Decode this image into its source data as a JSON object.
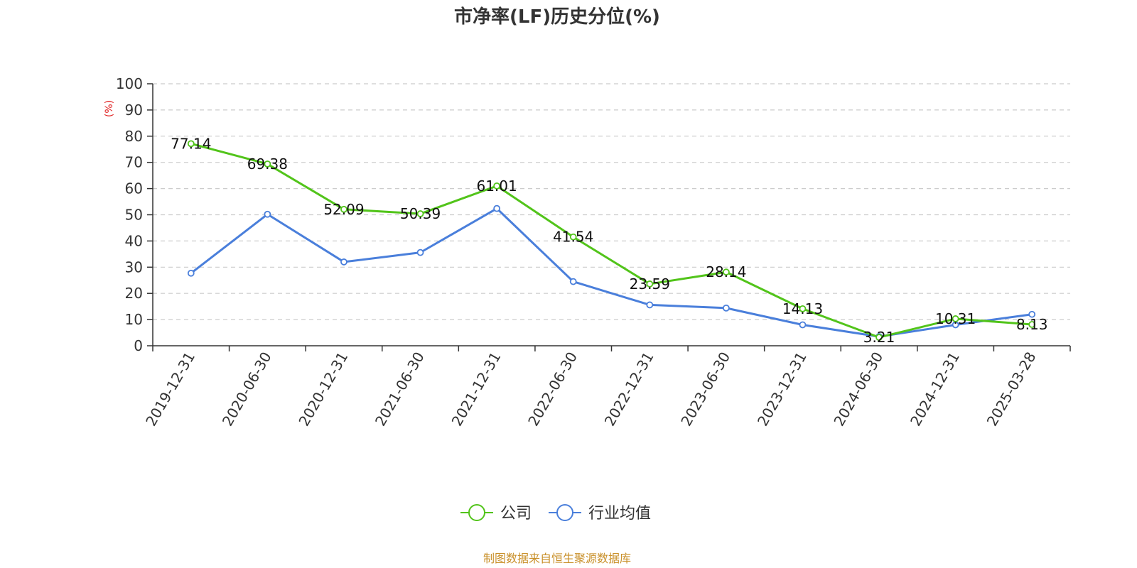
{
  "chart_data": {
    "type": "line",
    "title": "市净率(LF)历史分位(%)",
    "ylabel": "(%)",
    "ylim": [
      0,
      100
    ],
    "yticks": [
      0,
      10,
      20,
      30,
      40,
      50,
      60,
      70,
      80,
      90,
      100
    ],
    "grid": true,
    "legend_position": "bottom-center",
    "categories": [
      "2019-12-31",
      "2020-06-30",
      "2020-12-31",
      "2021-06-30",
      "2021-12-31",
      "2022-06-30",
      "2022-12-31",
      "2023-06-30",
      "2023-12-31",
      "2024-06-30",
      "2024-12-31",
      "2025-03-28"
    ],
    "series": [
      {
        "name": "公司",
        "color": "#52c41a",
        "values": [
          77.14,
          69.38,
          52.09,
          50.39,
          61.01,
          41.54,
          23.59,
          28.14,
          14.13,
          3.21,
          10.31,
          8.13
        ],
        "labels": [
          "77.14",
          "69.38",
          "52.09",
          "50.39",
          "61.01",
          "41.54",
          "23.59",
          "28.14",
          "14.13",
          "3.21",
          "10.31",
          "8.13"
        ]
      },
      {
        "name": "行业均值",
        "color": "#4a7fdb",
        "values": [
          27.7,
          50.2,
          32.0,
          35.6,
          52.4,
          24.5,
          15.6,
          14.4,
          8.0,
          3.5,
          8.0,
          12.0
        ]
      }
    ],
    "source": "制图数据来自恒生聚源数据库",
    "colors": {
      "unit": "#e02020",
      "source": "#c9902a",
      "grid": "#cccccc",
      "axis": "#333333"
    }
  }
}
